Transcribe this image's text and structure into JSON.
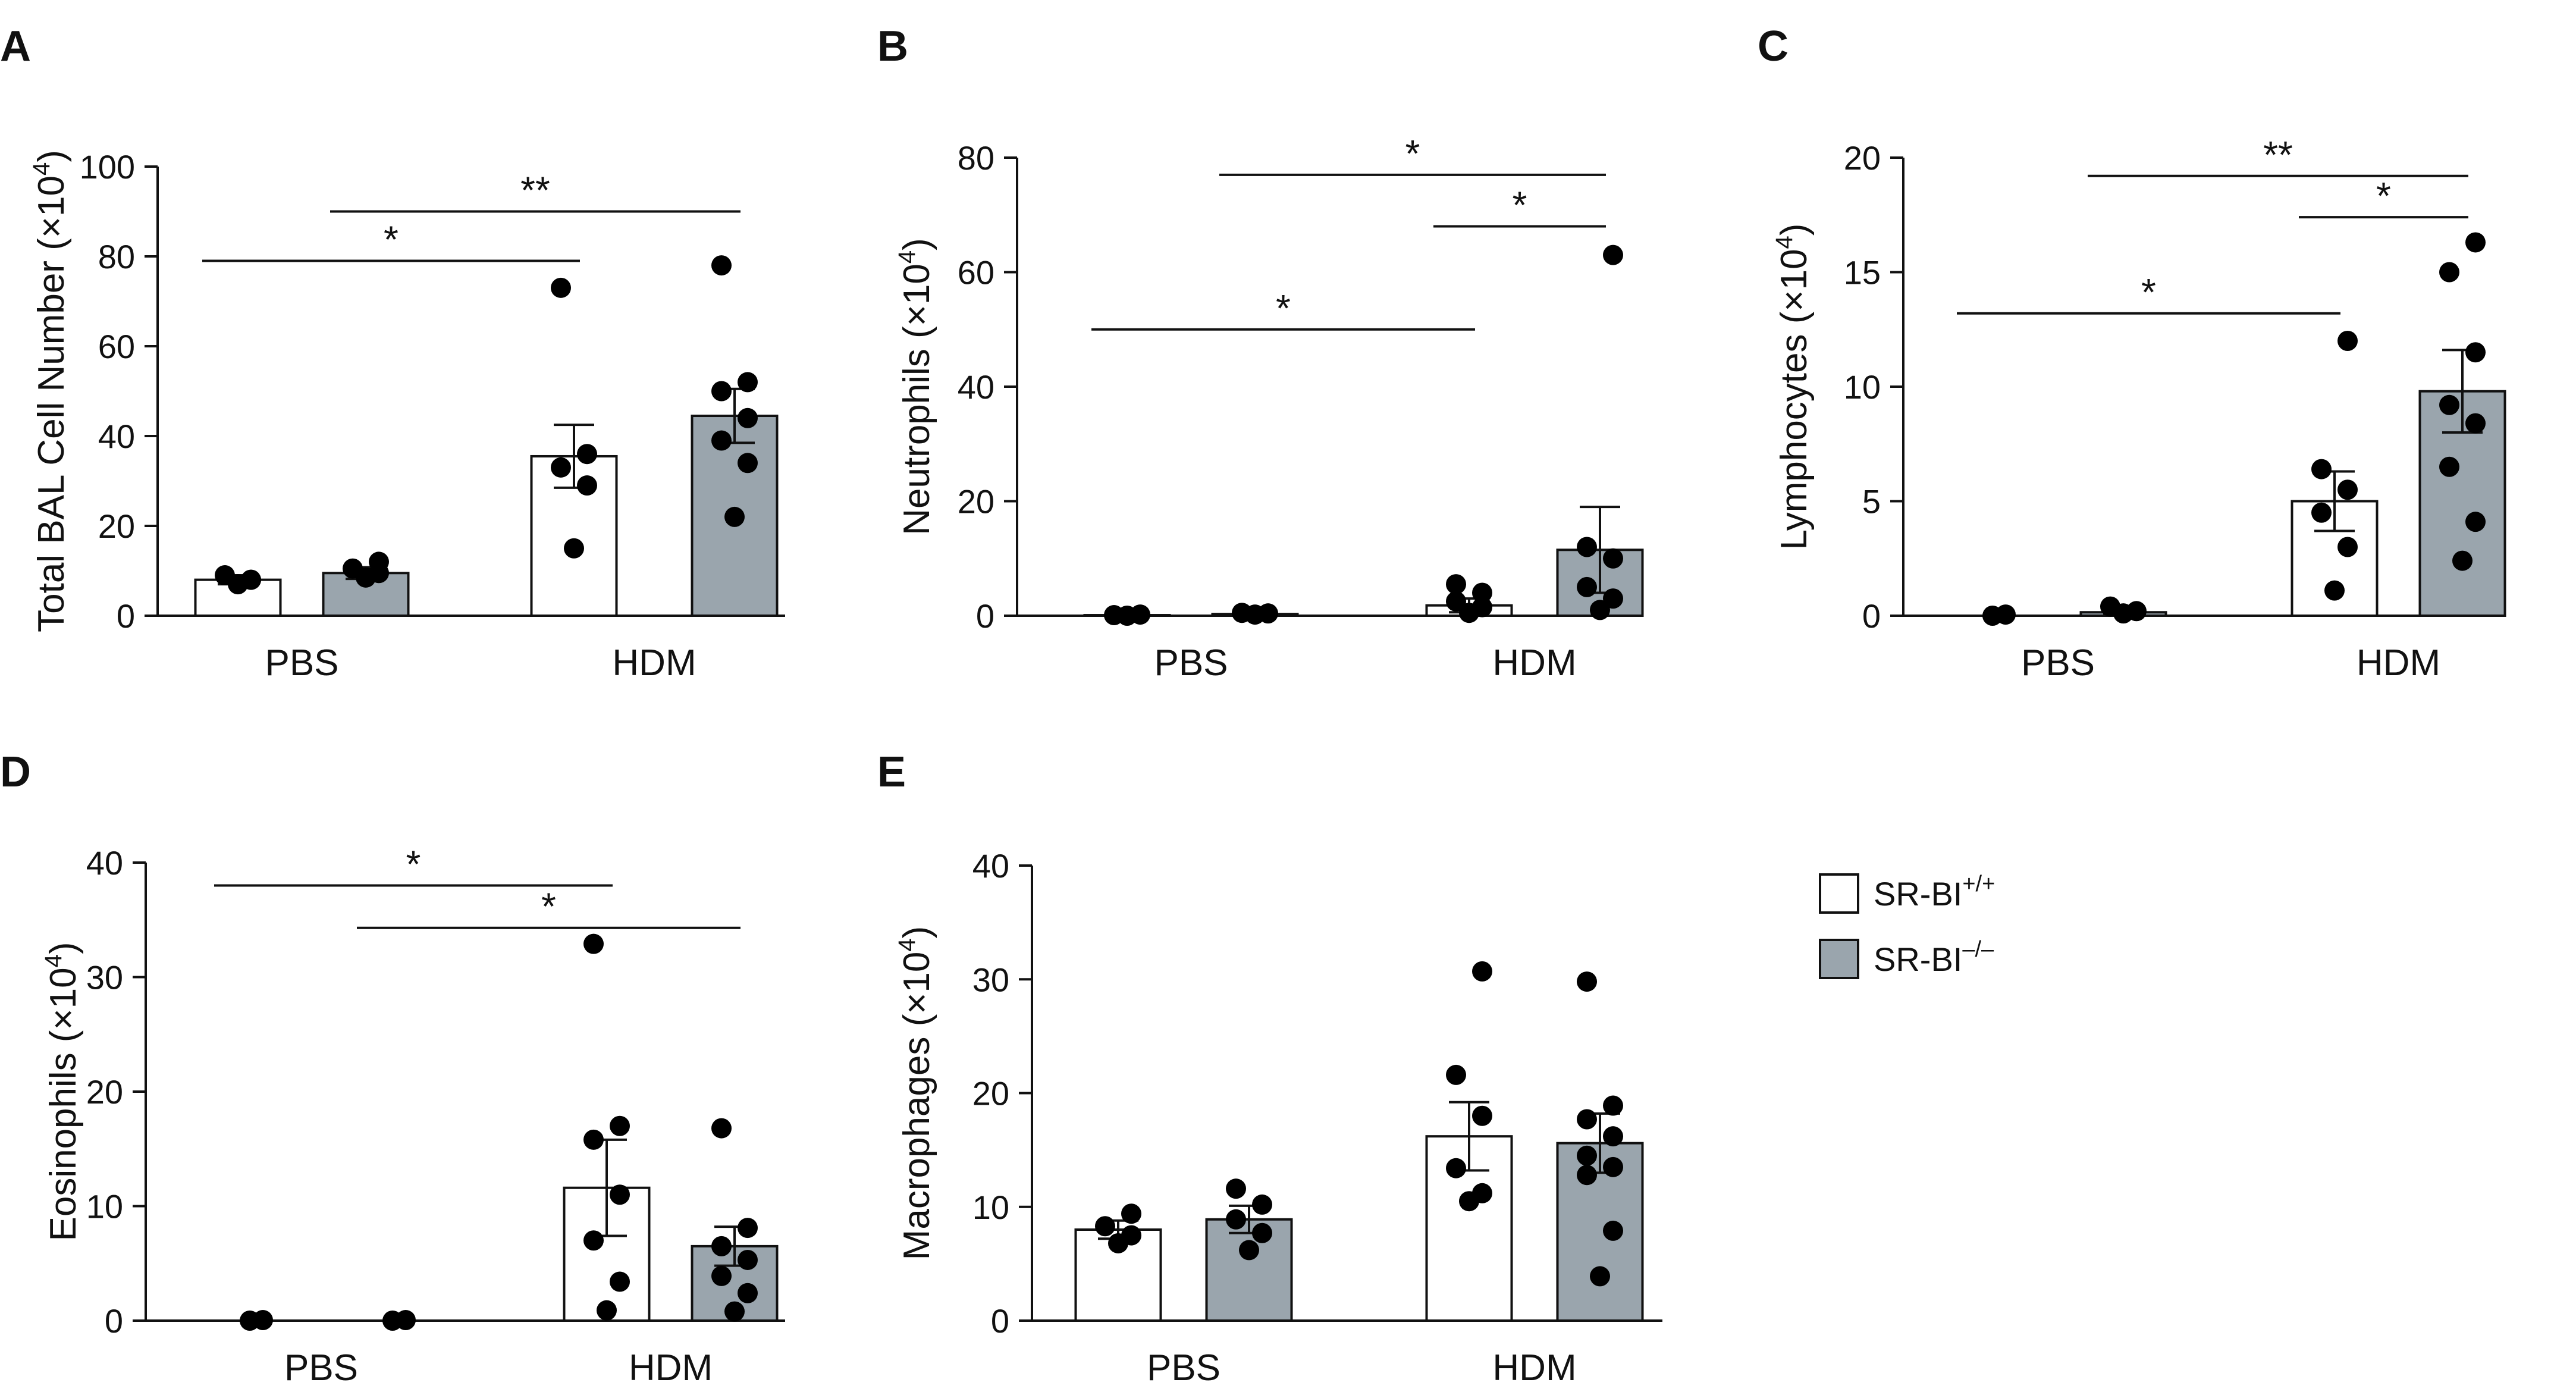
{
  "colors": {
    "wt": "#ffffff",
    "ko": "#9aa5ad",
    "ink": "#111111"
  },
  "legend": [
    {
      "label": "SR-BI",
      "sup": "+/+",
      "color": "#ffffff"
    },
    {
      "label": "SR-BI",
      "sup": "–/–",
      "color": "#9aa5ad"
    }
  ],
  "chart_data": [
    {
      "type": "bar",
      "panel": "A",
      "ylabel": "Total BAL Cell Number (×10",
      "ylabel_sup": "4",
      "ylabel_end": ")",
      "ylim": [
        0,
        100
      ],
      "yticks": [
        "0",
        "20",
        "40",
        "60",
        "80",
        "100"
      ],
      "categories": [
        "PBS",
        "HDM"
      ],
      "series": [
        {
          "name": "SR-BI+/+",
          "values": [
            8,
            35.5
          ],
          "sem": [
            1,
            7
          ],
          "points": [
            [
              7,
              8,
              9,
              8
            ],
            [
              15,
              29,
              33,
              36,
              73
            ]
          ]
        },
        {
          "name": "SR-BI–/–",
          "values": [
            9.5,
            44.5
          ],
          "sem": [
            1.3,
            6
          ],
          "points": [
            [
              8.5,
              9.5,
              10.5,
              12
            ],
            [
              22,
              34,
              39,
              44,
              50,
              52,
              78
            ]
          ]
        }
      ],
      "significance": [
        {
          "label": "*",
          "from": [
            0,
            0
          ],
          "to": [
            1,
            0
          ],
          "y": 79
        },
        {
          "label": "**",
          "from": [
            0,
            1
          ],
          "to": [
            1,
            1
          ],
          "y": 90
        }
      ]
    },
    {
      "type": "bar",
      "panel": "B",
      "ylabel": "Neutrophils (×10",
      "ylabel_sup": "4",
      "ylabel_end": ")",
      "ylim": [
        0,
        80
      ],
      "yticks": [
        "0",
        "20",
        "40",
        "60",
        "80"
      ],
      "categories": [
        "PBS",
        "HDM"
      ],
      "series": [
        {
          "name": "SR-BI+/+",
          "values": [
            0.1,
            1.8
          ],
          "sem": [
            0.1,
            1.2
          ],
          "points": [
            [
              0,
              0.2,
              0.1
            ],
            [
              0.5,
              1.5,
              2.5,
              4,
              5.5
            ]
          ]
        },
        {
          "name": "SR-BI–/–",
          "values": [
            0.3,
            11.5
          ],
          "sem": [
            0.2,
            7.5
          ],
          "points": [
            [
              0.2,
              0.4,
              0.5
            ],
            [
              1,
              3,
              5,
              10,
              12,
              63
            ]
          ]
        }
      ],
      "significance": [
        {
          "label": "*",
          "from": [
            0,
            0
          ],
          "to": [
            1,
            0
          ],
          "y": 50
        },
        {
          "label": "*",
          "from": [
            0,
            1
          ],
          "to": [
            1,
            1
          ],
          "y": 77
        },
        {
          "label": "*",
          "from": [
            1,
            0
          ],
          "to": [
            1,
            1
          ],
          "y": 68
        }
      ]
    },
    {
      "type": "bar",
      "panel": "C",
      "ylabel": "Lymphocytes (×10",
      "ylabel_sup": "4",
      "ylabel_end": ")",
      "ylim": [
        0,
        20
      ],
      "yticks": [
        "0",
        "5",
        "10",
        "15",
        "20"
      ],
      "categories": [
        "PBS",
        "HDM"
      ],
      "series": [
        {
          "name": "SR-BI+/+",
          "values": [
            0,
            5
          ],
          "sem": [
            0,
            1.3
          ],
          "points": [
            [
              0,
              0.05
            ],
            [
              1.1,
              3,
              4.5,
              5.5,
              6.4,
              12
            ]
          ]
        },
        {
          "name": "SR-BI–/–",
          "values": [
            0.15,
            9.8
          ],
          "sem": [
            0.1,
            1.8
          ],
          "points": [
            [
              0.1,
              0.2,
              0.4
            ],
            [
              2.4,
              4.1,
              6.5,
              8.4,
              9.2,
              11.5,
              15,
              16.3
            ]
          ]
        }
      ],
      "significance": [
        {
          "label": "*",
          "from": [
            0,
            0
          ],
          "to": [
            1,
            0
          ],
          "y": 13.2
        },
        {
          "label": "**",
          "from": [
            0,
            1
          ],
          "to": [
            1,
            1
          ],
          "y": 19.2
        },
        {
          "label": "*",
          "from": [
            1,
            0
          ],
          "to": [
            1,
            1
          ],
          "y": 17.4
        }
      ]
    },
    {
      "type": "bar",
      "panel": "D",
      "ylabel": "Eosinophils (×10",
      "ylabel_sup": "4",
      "ylabel_end": ")",
      "ylim": [
        0,
        40
      ],
      "yticks": [
        "0",
        "10",
        "20",
        "30",
        "40"
      ],
      "categories": [
        "PBS",
        "HDM"
      ],
      "series": [
        {
          "name": "SR-BI+/+",
          "values": [
            0,
            11.6
          ],
          "sem": [
            0,
            4.2
          ],
          "points": [
            [
              0,
              0.05
            ],
            [
              0.9,
              3.4,
              7,
              11,
              15.8,
              17,
              32.9
            ]
          ]
        },
        {
          "name": "SR-BI–/–",
          "values": [
            0,
            6.5
          ],
          "sem": [
            0,
            1.7
          ],
          "points": [
            [
              0,
              0.05
            ],
            [
              0.8,
              2.4,
              3.9,
              5.3,
              6.5,
              8.1,
              16.8
            ]
          ]
        }
      ],
      "significance": [
        {
          "label": "*",
          "from": [
            0,
            0
          ],
          "to": [
            1,
            0
          ],
          "y": 38
        },
        {
          "label": "*",
          "from": [
            0,
            1
          ],
          "to": [
            1,
            1
          ],
          "y": 34.3
        }
      ]
    },
    {
      "type": "bar",
      "panel": "E",
      "ylabel": "Macrophages (×10",
      "ylabel_sup": "4",
      "ylabel_end": ")",
      "ylim": [
        0,
        40
      ],
      "yticks": [
        "0",
        "10",
        "20",
        "30",
        "40"
      ],
      "categories": [
        "PBS",
        "HDM"
      ],
      "series": [
        {
          "name": "SR-BI+/+",
          "values": [
            8,
            16.2
          ],
          "sem": [
            0.8,
            3
          ],
          "points": [
            [
              6.8,
              7.5,
              8.3,
              9.4
            ],
            [
              10.5,
              11.2,
              13.4,
              18,
              21.6,
              30.7
            ]
          ]
        },
        {
          "name": "SR-BI–/–",
          "values": [
            8.9,
            15.6
          ],
          "sem": [
            1.2,
            2.6
          ],
          "points": [
            [
              6.2,
              7.7,
              8.9,
              10.2,
              11.6
            ],
            [
              3.9,
              7.9,
              12.8,
              13.5,
              14.5,
              16.2,
              17.7,
              18.9,
              29.8
            ]
          ]
        }
      ],
      "significance": []
    }
  ]
}
